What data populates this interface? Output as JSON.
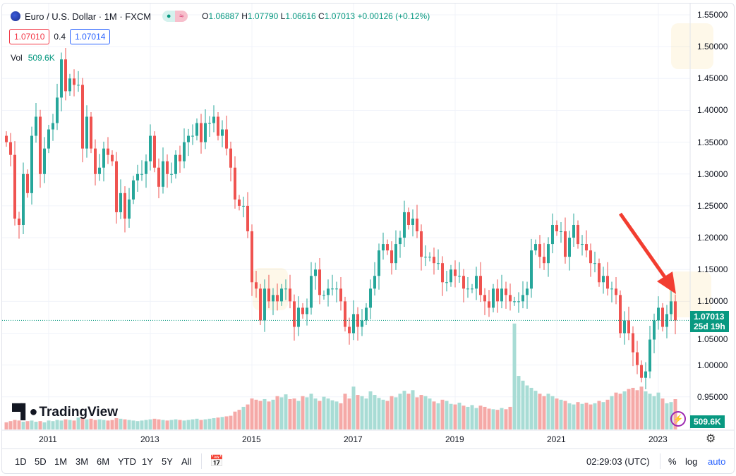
{
  "header": {
    "symbol": "Euro / U.S. Dollar · 1M · FXCM",
    "open_label": "O",
    "open": "1.06887",
    "high_label": "H",
    "high": "1.07790",
    "low_label": "L",
    "low": "1.06616",
    "close_label": "C",
    "close": "1.07013",
    "change": "+0.00126 (+0.12%)",
    "bid": "1.07010",
    "spread": "0.4",
    "ask": "1.07014",
    "vol_label": "Vol",
    "vol_value": "509.6K"
  },
  "price_axis": {
    "labels": [
      "1.55000",
      "1.50000",
      "1.45000",
      "1.40000",
      "1.35000",
      "1.30000",
      "1.25000",
      "1.20000",
      "1.15000",
      "1.10000",
      "1.05000",
      "1.00000",
      "0.95000"
    ],
    "current_price": "1.07013",
    "countdown": "25d 19h",
    "current_volume": "509.6K"
  },
  "time_axis": {
    "labels": [
      "2011",
      "2013",
      "2015",
      "2017",
      "2019",
      "2021",
      "2023"
    ]
  },
  "toolbar": {
    "ranges": [
      "1D",
      "5D",
      "1M",
      "3M",
      "6M",
      "YTD",
      "1Y",
      "5Y",
      "All"
    ],
    "clock": "02:29:03 (UTC)",
    "percent": "%",
    "log": "log",
    "auto": "auto"
  },
  "branding": {
    "logo_text": "TradingView"
  },
  "colors": {
    "up": "#26a69a",
    "down": "#ef5350",
    "accent": "#2962ff",
    "arrow": "#f23d30"
  },
  "chart_data": {
    "type": "candlestick",
    "title": "Euro / U.S. Dollar · 1M · FXCM",
    "start": "2010-03",
    "interval": "1M",
    "ylim": [
      0.92,
      1.56
    ],
    "first_open": 1.36,
    "closes": [
      1.35,
      1.33,
      1.23,
      1.22,
      1.3,
      1.27,
      1.36,
      1.39,
      1.3,
      1.34,
      1.37,
      1.38,
      1.42,
      1.48,
      1.43,
      1.45,
      1.44,
      1.44,
      1.34,
      1.39,
      1.34,
      1.3,
      1.31,
      1.34,
      1.33,
      1.32,
      1.24,
      1.27,
      1.23,
      1.26,
      1.29,
      1.3,
      1.3,
      1.32,
      1.36,
      1.31,
      1.28,
      1.32,
      1.3,
      1.3,
      1.33,
      1.32,
      1.35,
      1.36,
      1.36,
      1.38,
      1.35,
      1.38,
      1.38,
      1.39,
      1.36,
      1.37,
      1.34,
      1.31,
      1.26,
      1.25,
      1.25,
      1.21,
      1.13,
      1.12,
      1.07,
      1.12,
      1.1,
      1.11,
      1.1,
      1.12,
      1.12,
      1.1,
      1.06,
      1.09,
      1.08,
      1.09,
      1.14,
      1.15,
      1.11,
      1.11,
      1.12,
      1.12,
      1.12,
      1.1,
      1.06,
      1.05,
      1.08,
      1.06,
      1.07,
      1.09,
      1.12,
      1.14,
      1.18,
      1.19,
      1.18,
      1.16,
      1.19,
      1.2,
      1.24,
      1.22,
      1.23,
      1.21,
      1.17,
      1.17,
      1.17,
      1.16,
      1.16,
      1.13,
      1.13,
      1.15,
      1.14,
      1.14,
      1.12,
      1.12,
      1.12,
      1.14,
      1.11,
      1.1,
      1.09,
      1.12,
      1.1,
      1.12,
      1.11,
      1.1,
      1.1,
      1.1,
      1.11,
      1.12,
      1.18,
      1.19,
      1.17,
      1.16,
      1.19,
      1.22,
      1.21,
      1.21,
      1.17,
      1.2,
      1.22,
      1.19,
      1.19,
      1.18,
      1.16,
      1.16,
      1.13,
      1.14,
      1.12,
      1.12,
      1.11,
      1.05,
      1.07,
      1.05,
      1.02,
      1.0,
      0.98,
      0.99,
      1.04,
      1.07,
      1.09,
      1.06,
      1.08,
      1.1,
      1.07
    ],
    "wick": 0.018,
    "volumes_k": [
      120,
      140,
      160,
      150,
      130,
      140,
      150,
      130,
      140,
      120,
      150,
      140,
      160,
      150,
      170,
      160,
      150,
      200,
      190,
      170,
      180,
      160,
      170,
      160,
      150,
      160,
      190,
      180,
      170,
      160,
      150,
      140,
      150,
      160,
      170,
      180,
      170,
      160,
      150,
      160,
      170,
      160,
      150,
      160,
      170,
      180,
      160,
      170,
      180,
      190,
      200,
      210,
      220,
      230,
      300,
      330,
      380,
      420,
      520,
      500,
      480,
      510,
      470,
      500,
      560,
      540,
      590,
      510,
      520,
      480,
      560,
      540,
      600,
      520,
      480,
      550,
      520,
      490,
      470,
      440,
      600,
      520,
      720,
      580,
      560,
      520,
      640,
      580,
      530,
      500,
      480,
      560,
      540,
      600,
      650,
      600,
      660,
      540,
      580,
      560,
      520,
      470,
      440,
      500,
      480,
      430,
      420,
      450,
      400,
      380,
      410,
      360,
      400,
      380,
      350,
      340,
      330,
      360,
      340,
      380,
      1780,
      900,
      820,
      740,
      700,
      650,
      600,
      560,
      600,
      560,
      520,
      500,
      480,
      440,
      420,
      460,
      430,
      450,
      420,
      440,
      480,
      460,
      500,
      560,
      620,
      600,
      640,
      680,
      700,
      660,
      720,
      640,
      600,
      560,
      620,
      520,
      440,
      460,
      509.6
    ]
  }
}
